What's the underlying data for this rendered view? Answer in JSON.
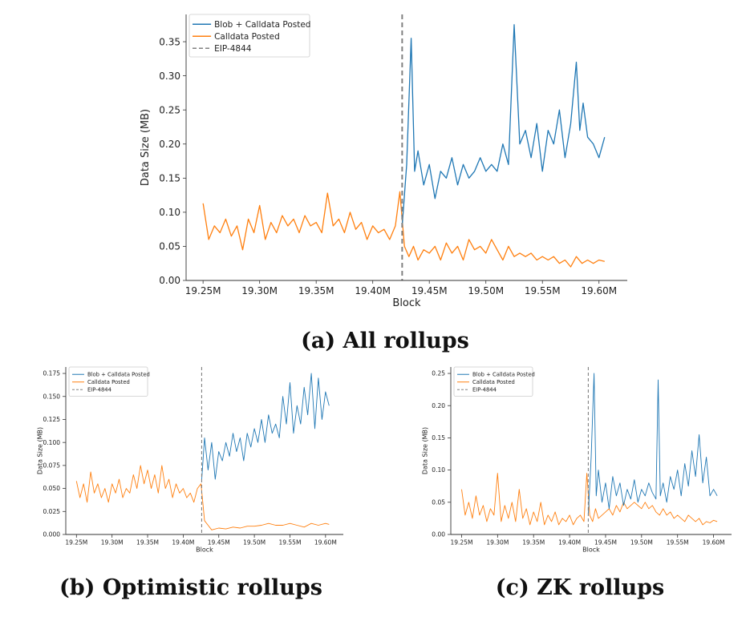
{
  "captions": {
    "a": "(a) All rollups",
    "b": "(b) Optimistic rollups",
    "c": "(c) ZK rollups"
  },
  "colors": {
    "blob": "#1f77b4",
    "calldata": "#ff7f0e",
    "eip": "#808080"
  },
  "chart_data": [
    {
      "id": "all",
      "type": "line",
      "title": "",
      "xlabel": "Block",
      "ylabel": "Data Size (MB)",
      "xlim": [
        19.235,
        19.625
      ],
      "ylim": [
        0,
        0.39
      ],
      "x_ticks": [
        19.25,
        19.3,
        19.35,
        19.4,
        19.45,
        19.5,
        19.55,
        19.6
      ],
      "x_tick_labels": [
        "19.25M",
        "19.30M",
        "19.35M",
        "19.40M",
        "19.45M",
        "19.50M",
        "19.55M",
        "19.60M"
      ],
      "y_ticks": [
        0,
        0.05,
        0.1,
        0.15,
        0.2,
        0.25,
        0.3,
        0.35
      ],
      "y_tick_labels": [
        "0.00",
        "0.05",
        "0.10",
        "0.15",
        "0.20",
        "0.25",
        "0.30",
        "0.35"
      ],
      "legend_position": "top-left",
      "legend": [
        "Blob + Calldata Posted",
        "Calldata Posted",
        "EIP-4844"
      ],
      "eip_block": 19.426,
      "series": [
        {
          "name": "Blob + Calldata Posted",
          "x": [
            19.426,
            19.43,
            19.434,
            19.437,
            19.44,
            19.445,
            19.45,
            19.455,
            19.46,
            19.465,
            19.47,
            19.475,
            19.48,
            19.485,
            19.49,
            19.495,
            19.5,
            19.505,
            19.51,
            19.515,
            19.52,
            19.525,
            19.53,
            19.535,
            19.54,
            19.545,
            19.55,
            19.555,
            19.56,
            19.565,
            19.57,
            19.575,
            19.58,
            19.583,
            19.586,
            19.59,
            19.595,
            19.6,
            19.605
          ],
          "values": [
            0.08,
            0.17,
            0.355,
            0.16,
            0.19,
            0.14,
            0.17,
            0.12,
            0.16,
            0.15,
            0.18,
            0.14,
            0.17,
            0.15,
            0.16,
            0.18,
            0.16,
            0.17,
            0.16,
            0.2,
            0.17,
            0.375,
            0.2,
            0.22,
            0.18,
            0.23,
            0.16,
            0.22,
            0.2,
            0.25,
            0.18,
            0.23,
            0.32,
            0.22,
            0.26,
            0.21,
            0.2,
            0.18,
            0.21
          ]
        },
        {
          "name": "Calldata Posted",
          "x": [
            19.25,
            19.255,
            19.26,
            19.265,
            19.27,
            19.275,
            19.28,
            19.285,
            19.29,
            19.295,
            19.3,
            19.305,
            19.31,
            19.315,
            19.32,
            19.325,
            19.33,
            19.335,
            19.34,
            19.345,
            19.35,
            19.355,
            19.36,
            19.365,
            19.37,
            19.375,
            19.38,
            19.385,
            19.39,
            19.395,
            19.4,
            19.405,
            19.41,
            19.415,
            19.42,
            19.424,
            19.428,
            19.432,
            19.436,
            19.44,
            19.445,
            19.45,
            19.455,
            19.46,
            19.465,
            19.47,
            19.475,
            19.48,
            19.485,
            19.49,
            19.495,
            19.5,
            19.505,
            19.51,
            19.515,
            19.52,
            19.525,
            19.53,
            19.535,
            19.54,
            19.545,
            19.55,
            19.555,
            19.56,
            19.565,
            19.57,
            19.575,
            19.58,
            19.585,
            19.59,
            19.595,
            19.6,
            19.605
          ],
          "values": [
            0.113,
            0.06,
            0.08,
            0.07,
            0.09,
            0.065,
            0.08,
            0.045,
            0.09,
            0.07,
            0.11,
            0.06,
            0.085,
            0.07,
            0.095,
            0.08,
            0.09,
            0.07,
            0.095,
            0.08,
            0.085,
            0.07,
            0.128,
            0.08,
            0.09,
            0.07,
            0.1,
            0.075,
            0.085,
            0.06,
            0.08,
            0.07,
            0.075,
            0.06,
            0.08,
            0.13,
            0.05,
            0.035,
            0.05,
            0.03,
            0.045,
            0.04,
            0.05,
            0.03,
            0.055,
            0.04,
            0.05,
            0.03,
            0.06,
            0.045,
            0.05,
            0.04,
            0.06,
            0.045,
            0.03,
            0.05,
            0.035,
            0.04,
            0.035,
            0.04,
            0.03,
            0.035,
            0.03,
            0.035,
            0.025,
            0.03,
            0.02,
            0.035,
            0.025,
            0.03,
            0.025,
            0.03,
            0.028
          ]
        }
      ]
    },
    {
      "id": "optimistic",
      "type": "line",
      "title": "",
      "xlabel": "Block",
      "ylabel": "Data Size (MB)",
      "xlim": [
        19.235,
        19.625
      ],
      "ylim": [
        0,
        0.182
      ],
      "x_ticks": [
        19.25,
        19.3,
        19.35,
        19.4,
        19.45,
        19.5,
        19.55,
        19.6
      ],
      "x_tick_labels": [
        "19.25M",
        "19.30M",
        "19.35M",
        "19.40M",
        "19.45M",
        "19.50M",
        "19.55M",
        "19.60M"
      ],
      "y_ticks": [
        0,
        0.025,
        0.05,
        0.075,
        0.1,
        0.125,
        0.15,
        0.175
      ],
      "y_tick_labels": [
        "0.000",
        "0.025",
        "0.050",
        "0.075",
        "0.100",
        "0.125",
        "0.150",
        "0.175"
      ],
      "legend_position": "top-left",
      "legend": [
        "Blob + Calldata Posted",
        "Calldata Posted",
        "EIP-4844"
      ],
      "eip_block": 19.426,
      "series": [
        {
          "name": "Blob + Calldata Posted",
          "x": [
            19.426,
            19.43,
            19.435,
            19.44,
            19.445,
            19.45,
            19.455,
            19.46,
            19.465,
            19.47,
            19.475,
            19.48,
            19.485,
            19.49,
            19.495,
            19.5,
            19.505,
            19.51,
            19.515,
            19.52,
            19.525,
            19.53,
            19.535,
            19.54,
            19.545,
            19.55,
            19.555,
            19.56,
            19.565,
            19.57,
            19.575,
            19.58,
            19.585,
            19.59,
            19.595,
            19.6,
            19.605
          ],
          "values": [
            0.06,
            0.105,
            0.07,
            0.1,
            0.06,
            0.09,
            0.08,
            0.1,
            0.085,
            0.11,
            0.09,
            0.105,
            0.08,
            0.11,
            0.095,
            0.115,
            0.1,
            0.125,
            0.1,
            0.13,
            0.11,
            0.12,
            0.105,
            0.15,
            0.12,
            0.165,
            0.11,
            0.14,
            0.12,
            0.16,
            0.13,
            0.175,
            0.115,
            0.17,
            0.125,
            0.155,
            0.14
          ]
        },
        {
          "name": "Calldata Posted",
          "x": [
            19.25,
            19.255,
            19.26,
            19.265,
            19.27,
            19.275,
            19.28,
            19.285,
            19.29,
            19.295,
            19.3,
            19.305,
            19.31,
            19.315,
            19.32,
            19.325,
            19.33,
            19.335,
            19.34,
            19.345,
            19.35,
            19.355,
            19.36,
            19.365,
            19.37,
            19.375,
            19.38,
            19.385,
            19.39,
            19.395,
            19.4,
            19.405,
            19.41,
            19.415,
            19.42,
            19.425,
            19.43,
            19.435,
            19.44,
            19.45,
            19.46,
            19.47,
            19.48,
            19.49,
            19.5,
            19.51,
            19.52,
            19.53,
            19.54,
            19.55,
            19.56,
            19.57,
            19.58,
            19.59,
            19.6,
            19.605
          ],
          "values": [
            0.058,
            0.04,
            0.055,
            0.035,
            0.068,
            0.045,
            0.055,
            0.04,
            0.05,
            0.035,
            0.055,
            0.045,
            0.06,
            0.04,
            0.05,
            0.045,
            0.065,
            0.05,
            0.075,
            0.055,
            0.07,
            0.05,
            0.065,
            0.045,
            0.075,
            0.05,
            0.06,
            0.04,
            0.055,
            0.045,
            0.05,
            0.04,
            0.045,
            0.035,
            0.05,
            0.055,
            0.015,
            0.01,
            0.005,
            0.007,
            0.006,
            0.008,
            0.007,
            0.009,
            0.009,
            0.01,
            0.012,
            0.01,
            0.01,
            0.012,
            0.01,
            0.008,
            0.012,
            0.01,
            0.012,
            0.011
          ]
        }
      ]
    },
    {
      "id": "zk",
      "type": "line",
      "title": "",
      "xlabel": "Block",
      "ylabel": "Data Size (MB)",
      "xlim": [
        19.235,
        19.625
      ],
      "ylim": [
        0,
        0.26
      ],
      "x_ticks": [
        19.25,
        19.3,
        19.35,
        19.4,
        19.45,
        19.5,
        19.55,
        19.6
      ],
      "x_tick_labels": [
        "19.25M",
        "19.30M",
        "19.35M",
        "19.40M",
        "19.45M",
        "19.50M",
        "19.55M",
        "19.60M"
      ],
      "y_ticks": [
        0,
        0.05,
        0.1,
        0.15,
        0.2,
        0.25
      ],
      "y_tick_labels": [
        "0.00",
        "0.05",
        "0.10",
        "0.15",
        "0.20",
        "0.25"
      ],
      "legend_position": "top-left",
      "legend": [
        "Blob + Calldata Posted",
        "Calldata Posted",
        "EIP-4844"
      ],
      "eip_block": 19.426,
      "series": [
        {
          "name": "Blob + Calldata Posted",
          "x": [
            19.426,
            19.43,
            19.434,
            19.437,
            19.44,
            19.445,
            19.45,
            19.455,
            19.46,
            19.465,
            19.47,
            19.475,
            19.48,
            19.485,
            19.49,
            19.495,
            19.5,
            19.505,
            19.51,
            19.515,
            19.52,
            19.523,
            19.526,
            19.53,
            19.535,
            19.54,
            19.545,
            19.55,
            19.555,
            19.56,
            19.565,
            19.57,
            19.575,
            19.58,
            19.585,
            19.59,
            19.595,
            19.6,
            19.605
          ],
          "values": [
            0.03,
            0.12,
            0.25,
            0.06,
            0.1,
            0.05,
            0.08,
            0.04,
            0.09,
            0.06,
            0.08,
            0.045,
            0.07,
            0.055,
            0.085,
            0.05,
            0.07,
            0.06,
            0.08,
            0.065,
            0.055,
            0.24,
            0.06,
            0.08,
            0.05,
            0.09,
            0.07,
            0.1,
            0.06,
            0.11,
            0.075,
            0.13,
            0.09,
            0.155,
            0.08,
            0.12,
            0.06,
            0.07,
            0.06
          ]
        },
        {
          "name": "Calldata Posted",
          "x": [
            19.25,
            19.255,
            19.26,
            19.265,
            19.27,
            19.275,
            19.28,
            19.285,
            19.29,
            19.295,
            19.3,
            19.305,
            19.31,
            19.315,
            19.32,
            19.325,
            19.33,
            19.335,
            19.34,
            19.345,
            19.35,
            19.355,
            19.36,
            19.365,
            19.37,
            19.375,
            19.38,
            19.385,
            19.39,
            19.395,
            19.4,
            19.405,
            19.41,
            19.415,
            19.42,
            19.424,
            19.428,
            19.432,
            19.436,
            19.44,
            19.445,
            19.45,
            19.455,
            19.46,
            19.465,
            19.47,
            19.475,
            19.48,
            19.485,
            19.49,
            19.495,
            19.5,
            19.505,
            19.51,
            19.515,
            19.52,
            19.525,
            19.53,
            19.535,
            19.54,
            19.545,
            19.55,
            19.555,
            19.56,
            19.565,
            19.57,
            19.575,
            19.58,
            19.585,
            19.59,
            19.595,
            19.6,
            19.605
          ],
          "values": [
            0.07,
            0.03,
            0.05,
            0.025,
            0.06,
            0.03,
            0.045,
            0.02,
            0.04,
            0.03,
            0.095,
            0.02,
            0.045,
            0.025,
            0.05,
            0.02,
            0.07,
            0.025,
            0.04,
            0.015,
            0.035,
            0.02,
            0.05,
            0.015,
            0.03,
            0.02,
            0.035,
            0.015,
            0.025,
            0.02,
            0.03,
            0.015,
            0.025,
            0.03,
            0.02,
            0.095,
            0.03,
            0.02,
            0.04,
            0.025,
            0.03,
            0.035,
            0.04,
            0.03,
            0.045,
            0.035,
            0.05,
            0.04,
            0.045,
            0.05,
            0.045,
            0.04,
            0.05,
            0.04,
            0.045,
            0.035,
            0.03,
            0.04,
            0.03,
            0.035,
            0.025,
            0.03,
            0.025,
            0.02,
            0.03,
            0.025,
            0.02,
            0.025,
            0.015,
            0.02,
            0.018,
            0.022,
            0.02
          ]
        }
      ]
    }
  ]
}
